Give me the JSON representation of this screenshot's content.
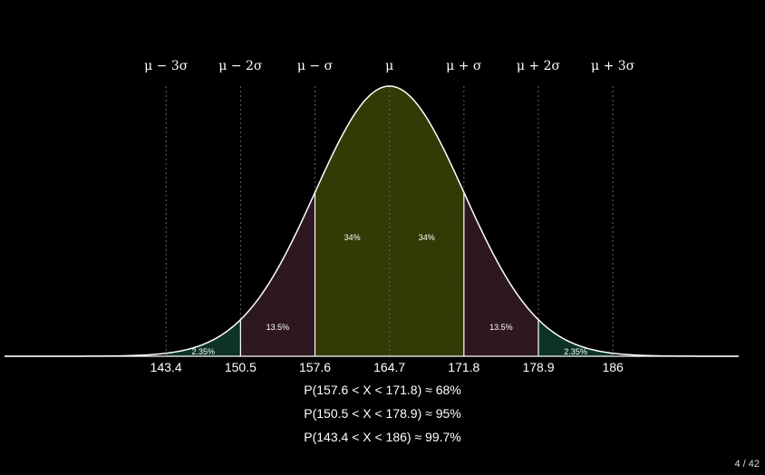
{
  "chart_data": {
    "type": "area",
    "distribution": "normal",
    "mean": 164.7,
    "sd": 7.1,
    "xlim": [
      128,
      198
    ],
    "sigma_labels": [
      "μ − 3σ",
      "μ − 2σ",
      "μ − σ",
      "μ",
      "μ + σ",
      "μ + 2σ",
      "μ + 3σ"
    ],
    "ticks": [
      {
        "value": 143.4,
        "label": "143.4"
      },
      {
        "value": 150.5,
        "label": "150.5"
      },
      {
        "value": 157.6,
        "label": "157.6"
      },
      {
        "value": 164.7,
        "label": "164.7"
      },
      {
        "value": 171.8,
        "label": "171.8"
      },
      {
        "value": 178.9,
        "label": "178.9"
      },
      {
        "value": 186,
        "label": "186"
      }
    ],
    "regions": [
      {
        "from": 143.4,
        "to": 150.5,
        "percent_label": "2.35%",
        "color": "#0d3326"
      },
      {
        "from": 150.5,
        "to": 157.6,
        "percent_label": "13.5%",
        "color": "#2e1820"
      },
      {
        "from": 157.6,
        "to": 164.7,
        "percent_label": "34%",
        "color": "#333a05"
      },
      {
        "from": 164.7,
        "to": 171.8,
        "percent_label": "34%",
        "color": "#333a05"
      },
      {
        "from": 171.8,
        "to": 178.9,
        "percent_label": "13.5%",
        "color": "#2e1820"
      },
      {
        "from": 178.9,
        "to": 186,
        "percent_label": "2.35%",
        "color": "#0d3326"
      }
    ],
    "curve_color": "#ffffff",
    "guide_line_color": "#666666"
  },
  "probabilities": [
    "P(157.6 < X < 171.8)  ≈  68%",
    "P(150.5 < X < 178.9)  ≈  95%",
    "P(143.4 < X < 186)  ≈  99.7%"
  ],
  "page_indicator": "4 / 42"
}
